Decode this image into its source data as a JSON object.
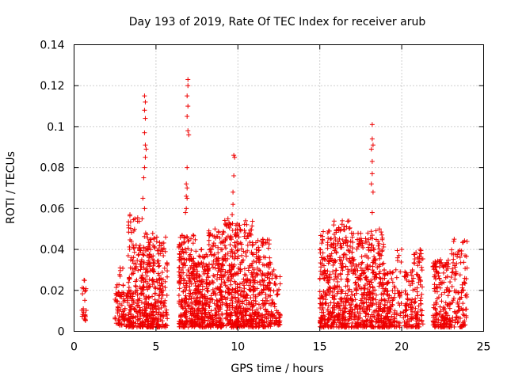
{
  "chart_data": {
    "type": "scatter",
    "title": "Day 193 of 2019, Rate Of TEC Index for receiver arub",
    "xlabel": "GPS time / hours",
    "ylabel": "ROTI / TECUs",
    "xlim": [
      0,
      25
    ],
    "ylim": [
      0,
      0.14
    ],
    "xticks": [
      "0",
      "5",
      "10",
      "15",
      "20",
      "25"
    ],
    "yticks": [
      "0",
      "0.02",
      "0.04",
      "0.06",
      "0.08",
      "0.1",
      "0.12",
      "0.14"
    ],
    "grid": true,
    "legend": "none",
    "marker": "plus",
    "color": "#ee0000",
    "clusters": [
      {
        "x0": 0.45,
        "x1": 0.75,
        "ymin": 0.004,
        "ymax": 0.025,
        "n": 22
      },
      {
        "x0": 2.5,
        "x1": 3.1,
        "ymin": 0.003,
        "ymax": 0.031,
        "n": 70
      },
      {
        "x0": 3.1,
        "x1": 3.6,
        "ymin": 0.002,
        "ymax": 0.02,
        "n": 40
      },
      {
        "x0": 3.3,
        "x1": 4.0,
        "ymin": 0.002,
        "ymax": 0.057,
        "n": 110
      },
      {
        "x0": 4.0,
        "x1": 4.9,
        "ymin": 0.002,
        "ymax": 0.048,
        "n": 220
      },
      {
        "x0": 4.9,
        "x1": 5.4,
        "ymin": 0.002,
        "ymax": 0.046,
        "n": 90
      },
      {
        "x0": 5.4,
        "x1": 5.7,
        "ymin": 0.002,
        "ymax": 0.046,
        "n": 40
      },
      {
        "x0": 6.4,
        "x1": 7.4,
        "ymin": 0.002,
        "ymax": 0.047,
        "n": 240
      },
      {
        "x0": 7.4,
        "x1": 8.2,
        "ymin": 0.002,
        "ymax": 0.04,
        "n": 180
      },
      {
        "x0": 8.2,
        "x1": 9.0,
        "ymin": 0.002,
        "ymax": 0.05,
        "n": 180
      },
      {
        "x0": 9.0,
        "x1": 10.0,
        "ymin": 0.002,
        "ymax": 0.055,
        "n": 230
      },
      {
        "x0": 10.0,
        "x1": 11.0,
        "ymin": 0.002,
        "ymax": 0.054,
        "n": 220
      },
      {
        "x0": 11.0,
        "x1": 12.0,
        "ymin": 0.002,
        "ymax": 0.045,
        "n": 180
      },
      {
        "x0": 12.0,
        "x1": 12.6,
        "ymin": 0.003,
        "ymax": 0.03,
        "n": 60
      },
      {
        "x0": 15.0,
        "x1": 15.8,
        "ymin": 0.002,
        "ymax": 0.049,
        "n": 170
      },
      {
        "x0": 15.8,
        "x1": 16.9,
        "ymin": 0.002,
        "ymax": 0.054,
        "n": 230
      },
      {
        "x0": 16.9,
        "x1": 18.0,
        "ymin": 0.002,
        "ymax": 0.048,
        "n": 210
      },
      {
        "x0": 18.0,
        "x1": 18.9,
        "ymin": 0.002,
        "ymax": 0.05,
        "n": 180
      },
      {
        "x0": 18.9,
        "x1": 19.6,
        "ymin": 0.002,
        "ymax": 0.03,
        "n": 110
      },
      {
        "x0": 19.6,
        "x1": 20.0,
        "ymin": 0.002,
        "ymax": 0.04,
        "n": 30
      },
      {
        "x0": 20.1,
        "x1": 20.7,
        "ymin": 0.002,
        "ymax": 0.03,
        "n": 70
      },
      {
        "x0": 20.7,
        "x1": 21.3,
        "ymin": 0.002,
        "ymax": 0.04,
        "n": 80
      },
      {
        "x0": 21.9,
        "x1": 23.0,
        "ymin": 0.002,
        "ymax": 0.035,
        "n": 170
      },
      {
        "x0": 23.0,
        "x1": 24.0,
        "ymin": 0.002,
        "ymax": 0.045,
        "n": 110
      }
    ],
    "points": [
      [
        4.3,
        0.115
      ],
      [
        4.35,
        0.112
      ],
      [
        4.3,
        0.108
      ],
      [
        4.35,
        0.104
      ],
      [
        4.3,
        0.097
      ],
      [
        4.35,
        0.091
      ],
      [
        4.4,
        0.089
      ],
      [
        4.35,
        0.085
      ],
      [
        4.3,
        0.08
      ],
      [
        4.25,
        0.075
      ],
      [
        4.2,
        0.065
      ],
      [
        4.3,
        0.06
      ],
      [
        4.15,
        0.055
      ],
      [
        6.95,
        0.123
      ],
      [
        6.95,
        0.12
      ],
      [
        6.9,
        0.115
      ],
      [
        6.95,
        0.11
      ],
      [
        6.9,
        0.105
      ],
      [
        6.95,
        0.098
      ],
      [
        7.0,
        0.096
      ],
      [
        6.9,
        0.08
      ],
      [
        6.85,
        0.072
      ],
      [
        6.9,
        0.07
      ],
      [
        6.85,
        0.066
      ],
      [
        6.9,
        0.065
      ],
      [
        6.85,
        0.06
      ],
      [
        6.8,
        0.058
      ],
      [
        9.75,
        0.086
      ],
      [
        9.8,
        0.085
      ],
      [
        9.75,
        0.076
      ],
      [
        9.7,
        0.068
      ],
      [
        9.7,
        0.062
      ],
      [
        9.65,
        0.057
      ],
      [
        18.2,
        0.101
      ],
      [
        18.2,
        0.094
      ],
      [
        18.25,
        0.091
      ],
      [
        18.15,
        0.089
      ],
      [
        18.2,
        0.083
      ],
      [
        18.2,
        0.077
      ],
      [
        18.15,
        0.072
      ],
      [
        18.25,
        0.068
      ],
      [
        18.2,
        0.058
      ]
    ]
  }
}
